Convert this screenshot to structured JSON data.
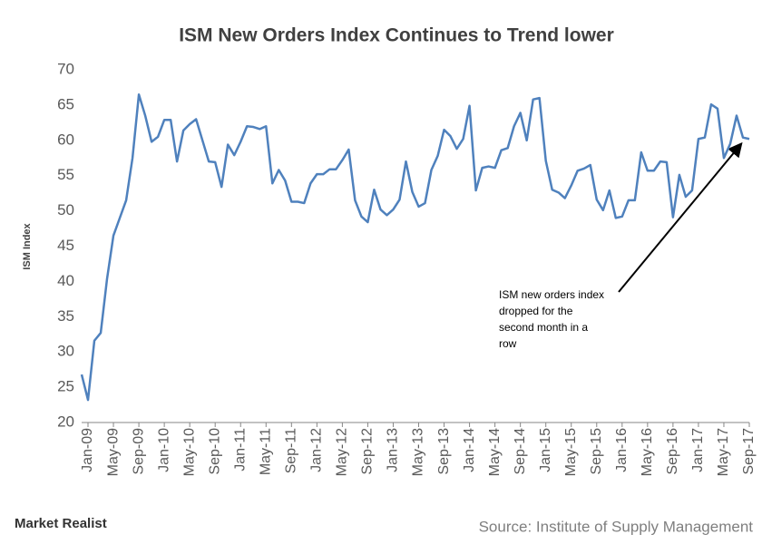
{
  "chart_data": {
    "type": "line",
    "title": "ISM  New Orders  Index  Continues  to  Trend lower",
    "y_label": "ISM Index",
    "categories": [
      null,
      "Jan-09",
      null,
      null,
      null,
      "May-09",
      null,
      null,
      null,
      "Sep-09",
      null,
      null,
      null,
      "Jan-10",
      null,
      null,
      null,
      "May-10",
      null,
      null,
      null,
      "Sep-10",
      null,
      null,
      null,
      "Jan-11",
      null,
      null,
      null,
      "May-11",
      null,
      null,
      null,
      "Sep-11",
      null,
      null,
      null,
      "Jan-12",
      null,
      null,
      null,
      "May-12",
      null,
      null,
      null,
      "Sep-12",
      null,
      null,
      null,
      "Jan-13",
      null,
      null,
      null,
      "May-13",
      null,
      null,
      null,
      "Sep-13",
      null,
      null,
      null,
      "Jan-14",
      null,
      null,
      null,
      "May-14",
      null,
      null,
      null,
      "Sep-14",
      null,
      null,
      null,
      "Jan-15",
      null,
      null,
      null,
      "May-15",
      null,
      null,
      null,
      "Sep-15",
      null,
      null,
      null,
      "Jan-16",
      null,
      null,
      null,
      "May-16",
      null,
      null,
      null,
      "Sep-16",
      null,
      null,
      null,
      "Jan-17",
      null,
      null,
      null,
      "May-17",
      null,
      null,
      null,
      "Sep-17"
    ],
    "series": [
      {
        "name": "ISM New Orders Index",
        "color": "#4f81bd",
        "values": [
          26.8,
          23.2,
          31.6,
          32.7,
          40.4,
          46.5,
          49,
          51.5,
          57.5,
          66.5,
          63.5,
          59.8,
          60.5,
          62.9,
          62.9,
          57,
          61.4,
          62.3,
          63,
          60,
          57,
          56.9,
          53.4,
          59.4,
          57.9,
          59.8,
          62,
          61.9,
          61.6,
          62,
          53.9,
          55.8,
          54.3,
          51.3,
          51.3,
          51.1,
          53.9,
          55.2,
          55.2,
          55.9,
          55.9,
          57.2,
          58.7,
          51.5,
          49.2,
          48.4,
          53,
          50.2,
          49.4,
          50.2,
          51.6,
          57,
          52.7,
          50.6,
          51.1,
          55.8,
          57.8,
          61.5,
          60.6,
          58.8,
          60.2,
          64.9,
          52.9,
          56.1,
          56.3,
          56.1,
          58.6,
          58.9,
          62,
          63.9,
          60,
          65.8,
          66,
          57.1,
          53,
          52.6,
          51.8,
          53.6,
          55.7,
          56,
          56.5,
          51.6,
          50.1,
          52.9,
          49,
          49.2,
          51.5,
          51.5,
          58.3,
          55.7,
          55.7,
          57,
          56.9,
          49.1,
          55.1,
          52,
          52.9,
          60.2,
          60.4,
          65.1,
          64.5,
          57.5,
          59.5,
          63.5,
          60.4,
          60.2
        ]
      }
    ],
    "ylim": [
      20,
      70
    ],
    "yticks": [
      20,
      25,
      30,
      35,
      40,
      45,
      50,
      55,
      60,
      65,
      70
    ],
    "grid": false,
    "annotation": [
      "ISM new orders index",
      "dropped for the",
      "second month in a",
      "row"
    ],
    "brand": "Market Realist",
    "source": "Source: Institute of Supply Management"
  }
}
